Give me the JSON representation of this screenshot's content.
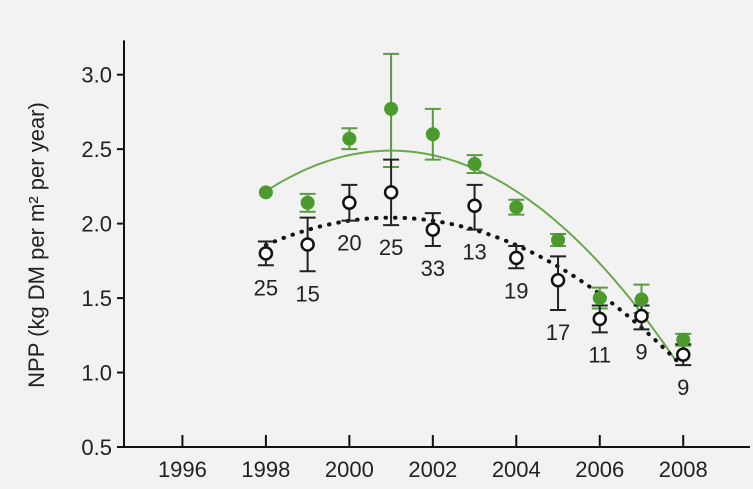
{
  "chart_data": {
    "type": "scatter",
    "ylabel": "NPP (kg DM per m² per year)",
    "xlim": [
      1994.6,
      2009.6
    ],
    "ylim": [
      0.5,
      3.3
    ],
    "x_ticks": [
      1996,
      1998,
      2000,
      2002,
      2004,
      2006,
      2008
    ],
    "y_ticks": [
      0.5,
      1.0,
      1.5,
      2.0,
      2.5,
      3.0
    ],
    "y_tick_labels": [
      "0.5",
      "1.0",
      "1.5",
      "2.0",
      "2.5",
      "3.0"
    ],
    "series": [
      {
        "marker": "filled",
        "color": "#4c9a2e",
        "x": [
          1998,
          1999,
          2000,
          2001,
          2002,
          2003,
          2004,
          2005,
          2006,
          2007,
          2008
        ],
        "y": [
          2.21,
          2.14,
          2.57,
          2.77,
          2.6,
          2.4,
          2.11,
          1.89,
          1.5,
          1.49,
          1.22
        ],
        "err_low": [
          2.21,
          2.08,
          2.5,
          2.38,
          2.43,
          2.34,
          2.06,
          1.85,
          1.43,
          1.4,
          1.18
        ],
        "err_high": [
          2.21,
          2.2,
          2.64,
          3.14,
          2.77,
          2.46,
          2.16,
          1.93,
          1.57,
          1.59,
          1.26
        ]
      },
      {
        "marker": "open",
        "color": "#111111",
        "x": [
          1998,
          1999,
          2000,
          2001,
          2002,
          2003,
          2004,
          2005,
          2006,
          2007,
          2008
        ],
        "y": [
          1.8,
          1.86,
          2.14,
          2.21,
          1.96,
          2.12,
          1.77,
          1.62,
          1.36,
          1.38,
          1.12
        ],
        "err_low": [
          1.72,
          1.68,
          2.02,
          1.99,
          1.85,
          1.96,
          1.7,
          1.42,
          1.27,
          1.29,
          1.05
        ],
        "err_high": [
          1.88,
          2.04,
          2.26,
          2.43,
          2.07,
          2.26,
          1.85,
          1.78,
          1.45,
          1.45,
          1.19
        ],
        "sample_sizes": [
          "25",
          "15",
          "20",
          "25",
          "33",
          "13",
          "19",
          "17",
          "11",
          "9",
          "9"
        ]
      }
    ],
    "fits": [
      {
        "style": "solid",
        "color": "#6aa84f",
        "x_range": [
          1998,
          2007.8
        ],
        "coef_about_2001": [
          2.49,
          0.0,
          -0.0303
        ]
      },
      {
        "style": "dotted",
        "color": "#111111",
        "x_range": [
          1998,
          2007.9
        ],
        "coef_about_2001": [
          2.04,
          0.0,
          -0.0205
        ]
      }
    ]
  }
}
